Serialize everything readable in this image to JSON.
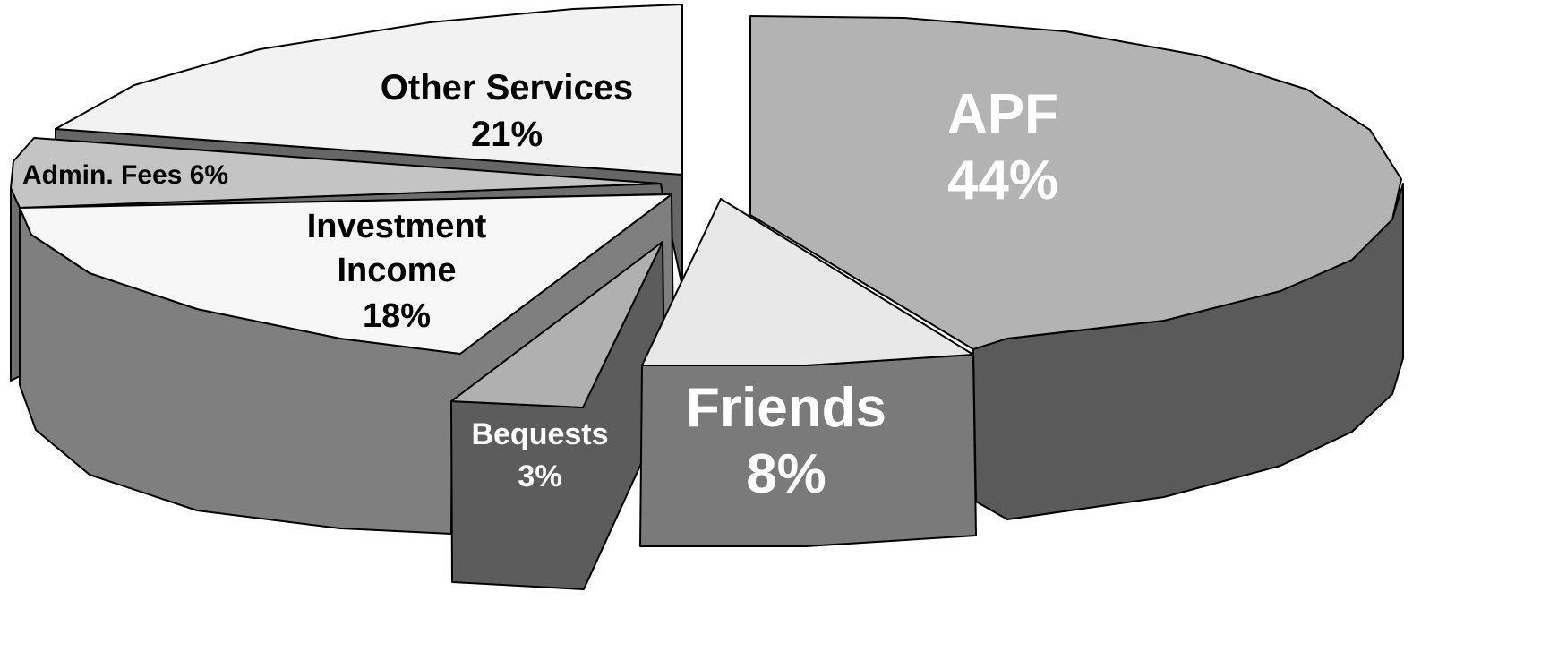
{
  "chart_data": {
    "type": "pie",
    "title": "",
    "style": "3d-exploded",
    "slices": [
      {
        "label": "APF",
        "value": 44,
        "value_label": "44%",
        "color": "#b3b3b3",
        "side_color": "#5a5a5a",
        "label_color": "#ffffff"
      },
      {
        "label": "Friends",
        "value": 8,
        "value_label": "8%",
        "color": "#e8e8e8",
        "side_color": "#7a7a7a",
        "label_color": "#ffffff"
      },
      {
        "label": "Bequests",
        "value": 3,
        "value_label": "3%",
        "color": "#b0b0b0",
        "side_color": "#5c5c5c",
        "label_color": "#ffffff"
      },
      {
        "label": "Investment Income",
        "value": 18,
        "value_label": "18%",
        "color": "#f7f7f7",
        "side_color": "#7f7f7f",
        "label_color": "#000000"
      },
      {
        "label": "Admin. Fees",
        "value": 6,
        "value_label": "6%",
        "color": "#c4c4c4",
        "side_color": "#6e6e6e",
        "label_color": "#000000"
      },
      {
        "label": "Other Services",
        "value": 21,
        "value_label": "21%",
        "color": "#f2f2f2",
        "side_color": "#666666",
        "label_color": "#000000"
      }
    ]
  }
}
